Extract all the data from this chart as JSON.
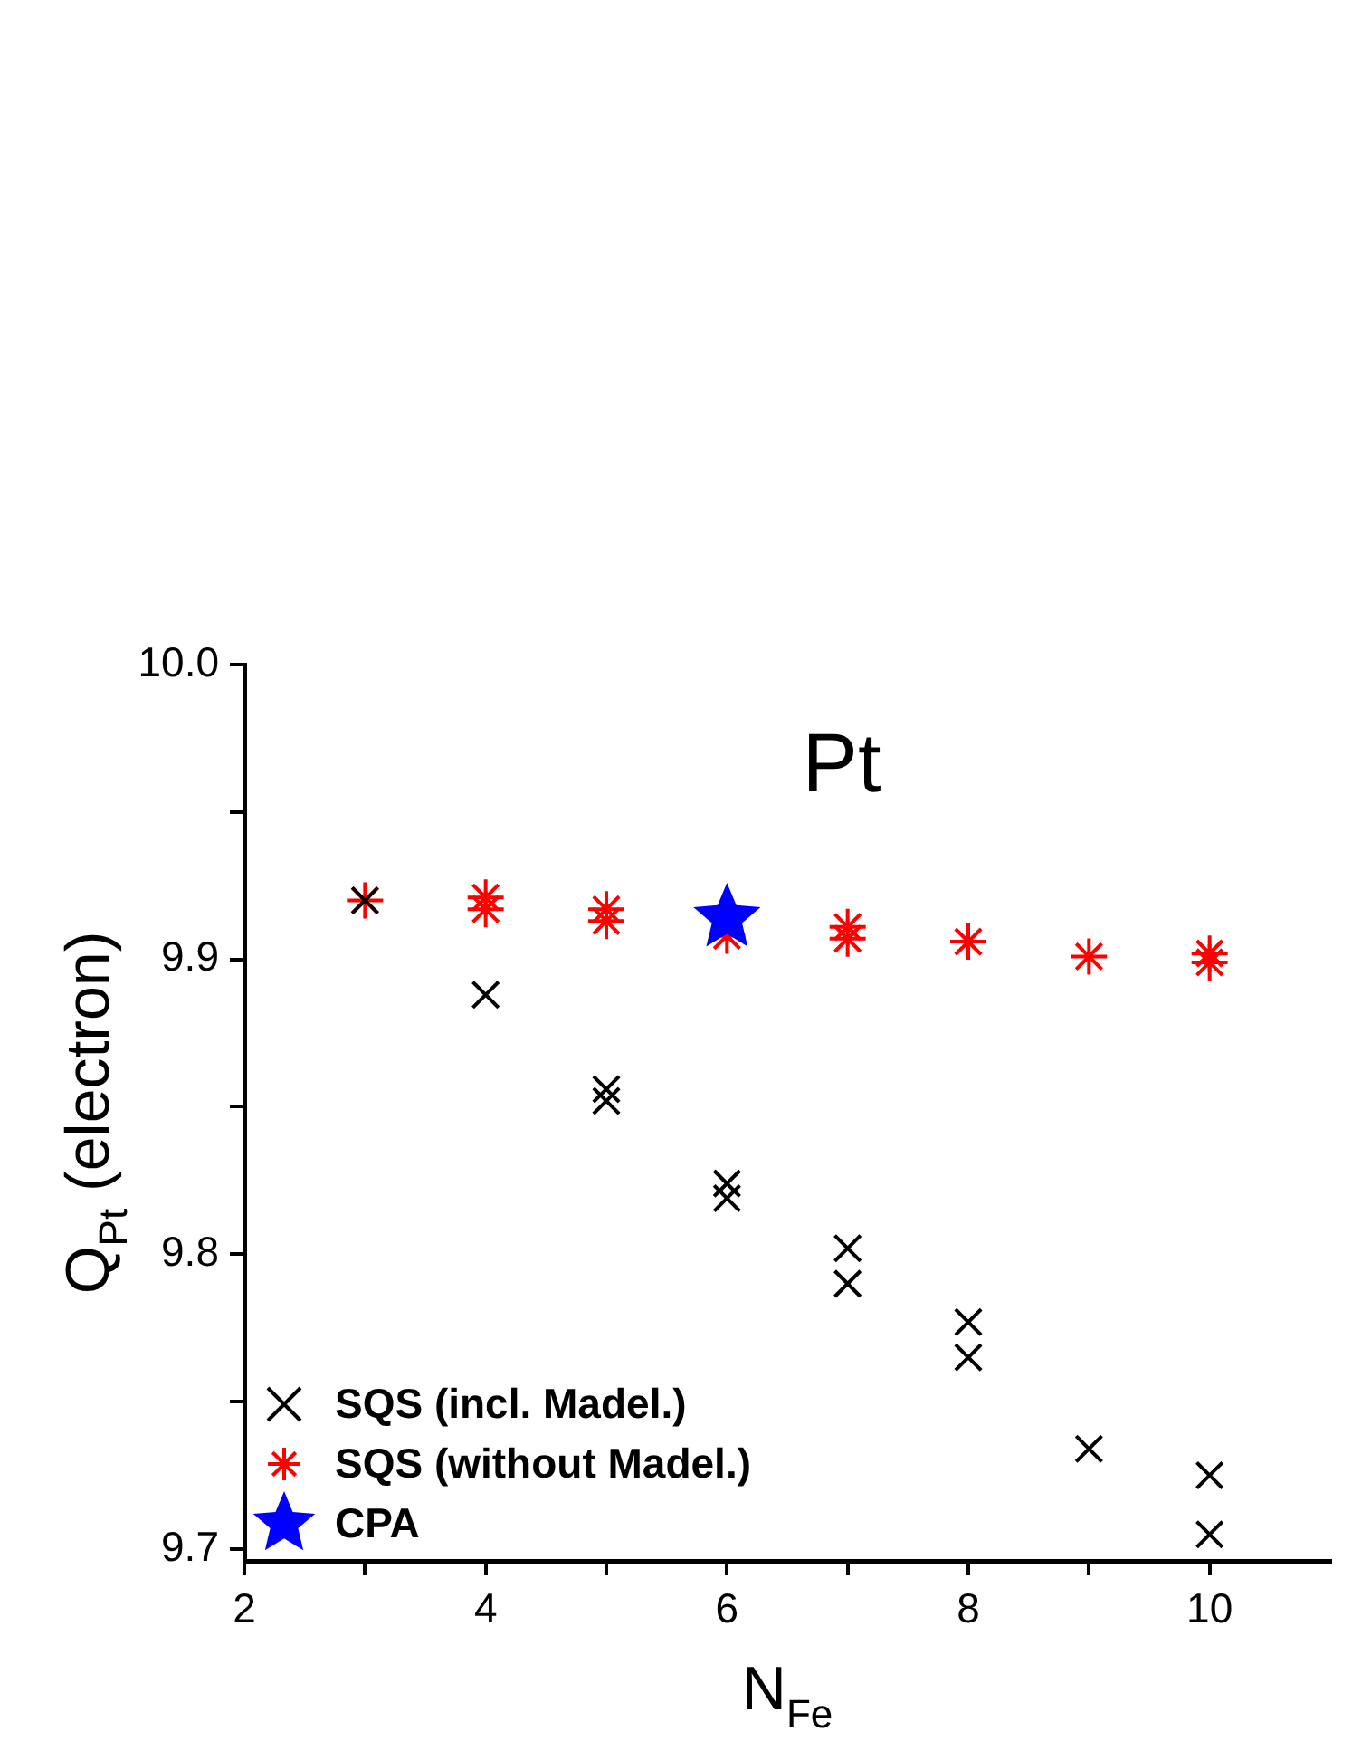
{
  "chart_data": {
    "type": "scatter",
    "title": "Pt",
    "xlabel": "N$_{Fe}$",
    "ylabel": "Q$_{Pt}$ (electron)",
    "xlim": [
      2,
      11
    ],
    "xticks": [
      2,
      {
        "value": 3,
        "label": null
      },
      4,
      {
        "value": 5,
        "label": null
      },
      6,
      {
        "value": 7,
        "label": null
      },
      8,
      {
        "value": 9,
        "label": null
      },
      10
    ],
    "ylim": [
      9.696,
      10.0
    ],
    "yticks": [
      9.7,
      {
        "value": 9.75,
        "label": null
      },
      9.8,
      {
        "value": 9.85,
        "label": null
      },
      9.9,
      {
        "value": 9.95,
        "label": null
      },
      {
        "value": 10.0,
        "label": "10.0"
      }
    ],
    "grid": false,
    "legend": "bottom left",
    "series": [
      {
        "name": "SQS (incl. Madel.)",
        "color": "#000000",
        "marker": "cross",
        "x": [
          3,
          4,
          5,
          5,
          6,
          6,
          7,
          7,
          8,
          8,
          9,
          10,
          10
        ],
        "values": [
          9.92,
          9.888,
          9.856,
          9.852,
          9.824,
          9.819,
          9.802,
          9.79,
          9.777,
          9.765,
          9.734,
          9.725,
          9.705
        ]
      },
      {
        "name": "SQS (without Madel.)",
        "color": "#ff0000",
        "x": [
          3,
          4,
          4,
          5,
          5,
          6,
          7,
          7,
          8,
          9,
          10,
          10
        ],
        "values": [
          9.92,
          9.921,
          9.917,
          9.917,
          9.913,
          9.908,
          9.911,
          9.907,
          9.906,
          9.901,
          9.902,
          9.899
        ]
      },
      {
        "name": "CPA",
        "color": "#0000ff",
        "marker": "star",
        "x": [
          6
        ],
        "values": [
          9.914
        ]
      }
    ]
  }
}
